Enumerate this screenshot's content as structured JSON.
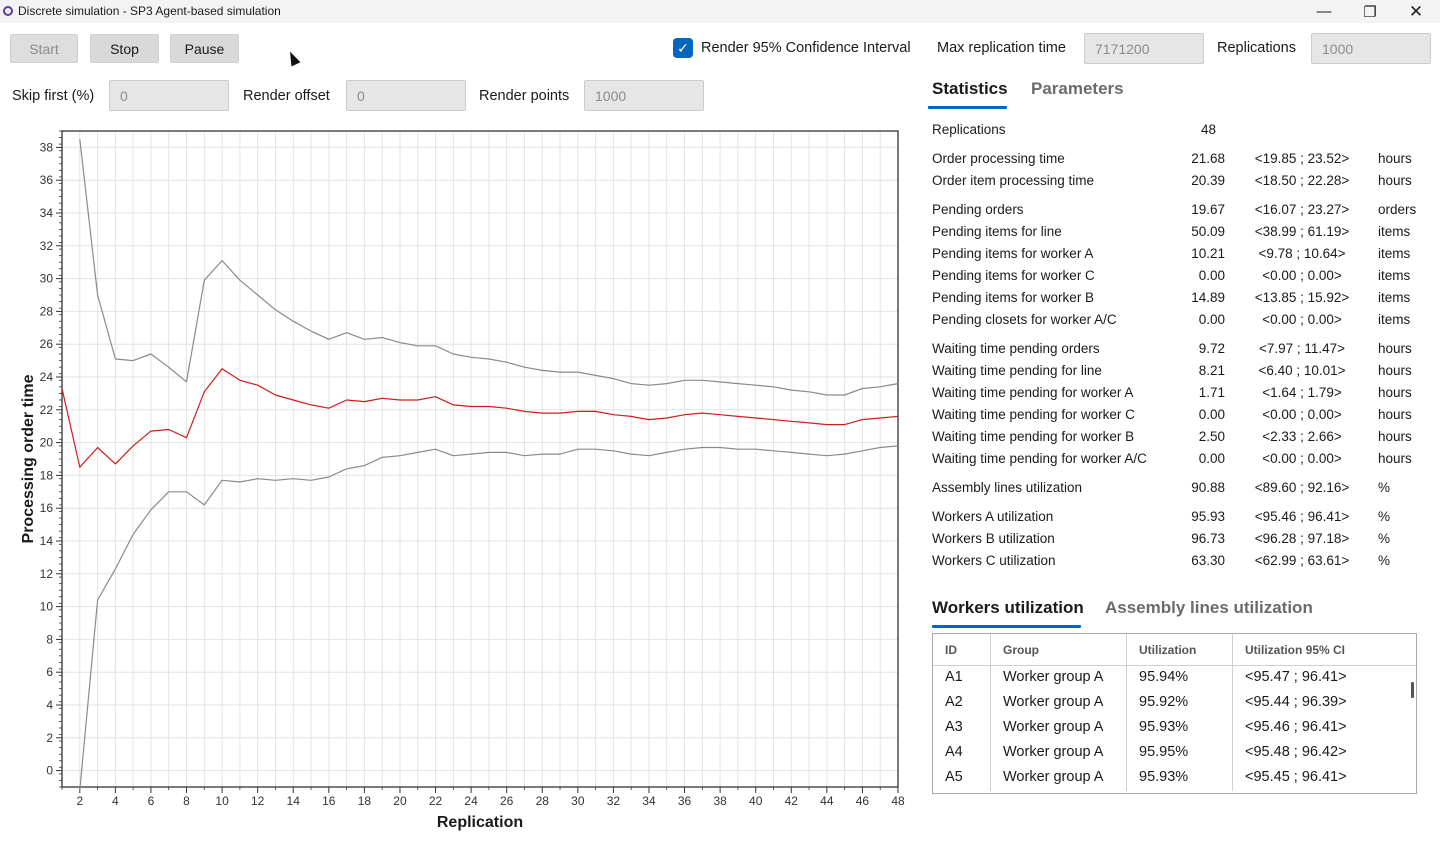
{
  "window": {
    "title": "Discrete simulation - SP3 Agent-based simulation",
    "min_icon": "minimize-icon",
    "max_icon": "maximize-icon",
    "close_icon": "close-icon"
  },
  "toolbar": {
    "start_label": "Start",
    "stop_label": "Stop",
    "pause_label": "Pause",
    "render_ci_label": "Render 95% Confidence Interval",
    "render_ci_checked": true,
    "max_rep_time_label": "Max replication time",
    "max_rep_time_value": "7171200",
    "replications_label": "Replications",
    "replications_value": "1000"
  },
  "render_opts": {
    "skip_first_label": "Skip first (%)",
    "skip_first_value": "0",
    "render_offset_label": "Render offset",
    "render_offset_value": "0",
    "render_points_label": "Render points",
    "render_points_value": "1000"
  },
  "chart_data": {
    "type": "line",
    "xlabel": "Replication",
    "ylabel": "Processing order time",
    "xlim": [
      1,
      48
    ],
    "ylim": [
      -1,
      39
    ],
    "xticks": [
      2,
      4,
      6,
      8,
      10,
      12,
      14,
      16,
      18,
      20,
      22,
      24,
      26,
      28,
      30,
      32,
      34,
      36,
      38,
      40,
      42,
      44,
      46,
      48
    ],
    "yticks": [
      0,
      2,
      4,
      6,
      8,
      10,
      12,
      14,
      16,
      18,
      20,
      22,
      24,
      26,
      28,
      30,
      32,
      34,
      36,
      38
    ],
    "grid": true,
    "series": [
      {
        "role": "upper-ci",
        "color": "#8a8a8a",
        "x": [
          2,
          3,
          4,
          5,
          6,
          7,
          8,
          9,
          10,
          11,
          12,
          13,
          14,
          15,
          16,
          17,
          18,
          19,
          20,
          21,
          22,
          23,
          24,
          25,
          26,
          27,
          28,
          29,
          30,
          31,
          32,
          33,
          34,
          35,
          36,
          37,
          38,
          39,
          40,
          41,
          42,
          43,
          44,
          45,
          46,
          47,
          48
        ],
        "y": [
          38.5,
          29,
          25.1,
          25,
          25.4,
          24.6,
          23.7,
          29.9,
          31.1,
          29.9,
          29,
          28.1,
          27.4,
          26.8,
          26.3,
          26.7,
          26.3,
          26.4,
          26.1,
          25.9,
          25.9,
          25.4,
          25.2,
          25.1,
          24.9,
          24.6,
          24.4,
          24.3,
          24.3,
          24.1,
          23.9,
          23.6,
          23.5,
          23.6,
          23.8,
          23.8,
          23.7,
          23.6,
          23.5,
          23.4,
          23.2,
          23.1,
          22.9,
          22.9,
          23.3,
          23.4,
          23.6
        ]
      },
      {
        "role": "mean",
        "color": "#d11c1c",
        "x": [
          1,
          2,
          3,
          4,
          5,
          6,
          7,
          8,
          9,
          10,
          11,
          12,
          13,
          14,
          15,
          16,
          17,
          18,
          19,
          20,
          21,
          22,
          23,
          24,
          25,
          26,
          27,
          28,
          29,
          30,
          31,
          32,
          33,
          34,
          35,
          36,
          37,
          38,
          39,
          40,
          41,
          42,
          43,
          44,
          45,
          46,
          47,
          48
        ],
        "y": [
          23.3,
          18.5,
          19.7,
          18.7,
          19.8,
          20.7,
          20.8,
          20.3,
          23.1,
          24.5,
          23.8,
          23.5,
          22.9,
          22.6,
          22.3,
          22.1,
          22.6,
          22.5,
          22.7,
          22.6,
          22.6,
          22.8,
          22.3,
          22.2,
          22.2,
          22.1,
          21.9,
          21.8,
          21.8,
          21.9,
          21.9,
          21.7,
          21.6,
          21.4,
          21.5,
          21.7,
          21.8,
          21.7,
          21.6,
          21.5,
          21.4,
          21.3,
          21.2,
          21.1,
          21.1,
          21.4,
          21.5,
          21.6
        ]
      },
      {
        "role": "lower-ci",
        "color": "#8a8a8a",
        "x": [
          2,
          3,
          4,
          5,
          6,
          7,
          8,
          9,
          10,
          11,
          12,
          13,
          14,
          15,
          16,
          17,
          18,
          19,
          20,
          21,
          22,
          23,
          24,
          25,
          26,
          27,
          28,
          29,
          30,
          31,
          32,
          33,
          34,
          35,
          36,
          37,
          38,
          39,
          40,
          41,
          42,
          43,
          44,
          45,
          46,
          47,
          48
        ],
        "y": [
          -1.2,
          10.4,
          12.3,
          14.4,
          15.9,
          17,
          17,
          16.2,
          17.7,
          17.6,
          17.8,
          17.7,
          17.8,
          17.7,
          17.9,
          18.4,
          18.6,
          19.1,
          19.2,
          19.4,
          19.6,
          19.2,
          19.3,
          19.4,
          19.4,
          19.2,
          19.3,
          19.3,
          19.6,
          19.6,
          19.5,
          19.3,
          19.2,
          19.4,
          19.6,
          19.7,
          19.7,
          19.6,
          19.6,
          19.5,
          19.4,
          19.3,
          19.2,
          19.3,
          19.5,
          19.7,
          19.8
        ]
      }
    ]
  },
  "stats_tabs": {
    "statistics": "Statistics",
    "parameters": "Parameters"
  },
  "stats": {
    "replications_label": "Replications",
    "replications_value": "48",
    "rows": [
      {
        "name": "Order processing time",
        "value": "21.68",
        "ci": "<19.85 ; 23.52>",
        "unit": "hours"
      },
      {
        "name": "Order item processing time",
        "value": "20.39",
        "ci": "<18.50 ; 22.28>",
        "unit": "hours"
      },
      {
        "name": "Pending orders",
        "value": "19.67",
        "ci": "<16.07 ; 23.27>",
        "unit": "orders"
      },
      {
        "name": "Pending items for line",
        "value": "50.09",
        "ci": "<38.99 ; 61.19>",
        "unit": "items"
      },
      {
        "name": "Pending items for worker A",
        "value": "10.21",
        "ci": "<9.78 ; 10.64>",
        "unit": "items"
      },
      {
        "name": "Pending items for worker C",
        "value": "0.00",
        "ci": "<0.00 ; 0.00>",
        "unit": "items"
      },
      {
        "name": "Pending items for worker B",
        "value": "14.89",
        "ci": "<13.85 ; 15.92>",
        "unit": "items"
      },
      {
        "name": "Pending closets for worker A/C",
        "value": "0.00",
        "ci": "<0.00 ; 0.00>",
        "unit": "items"
      },
      {
        "name": "Waiting time pending orders",
        "value": "9.72",
        "ci": "<7.97 ; 11.47>",
        "unit": "hours"
      },
      {
        "name": "Waiting time pending for line",
        "value": "8.21",
        "ci": "<6.40 ; 10.01>",
        "unit": "hours"
      },
      {
        "name": "Waiting time pending for worker A",
        "value": "1.71",
        "ci": "<1.64 ; 1.79>",
        "unit": "hours"
      },
      {
        "name": "Waiting time pending for worker C",
        "value": "0.00",
        "ci": "<0.00 ; 0.00>",
        "unit": "hours"
      },
      {
        "name": "Waiting time pending for worker B",
        "value": "2.50",
        "ci": "<2.33 ; 2.66>",
        "unit": "hours"
      },
      {
        "name": "Waiting time pending for worker A/C",
        "value": "0.00",
        "ci": "<0.00 ; 0.00>",
        "unit": "hours"
      },
      {
        "name": "Assembly lines utilization",
        "value": "90.88",
        "ci": "<89.60 ; 92.16>",
        "unit": "%"
      },
      {
        "name": "Workers A utilization",
        "value": "95.93",
        "ci": "<95.46 ; 96.41>",
        "unit": "%"
      },
      {
        "name": "Workers B utilization",
        "value": "96.73",
        "ci": "<96.28 ; 97.18>",
        "unit": "%"
      },
      {
        "name": "Workers C utilization",
        "value": "63.30",
        "ci": "<62.99 ; 63.61>",
        "unit": "%"
      }
    ]
  },
  "util_tabs": {
    "workers": "Workers utilization",
    "lines": "Assembly lines utilization"
  },
  "util_table": {
    "headers": [
      "ID",
      "Group",
      "Utilization",
      "Utilization 95% CI"
    ],
    "rows": [
      [
        "A1",
        "Worker group A",
        "95.94%",
        "<95.47 ; 96.41>"
      ],
      [
        "A2",
        "Worker group A",
        "95.92%",
        "<95.44 ; 96.39>"
      ],
      [
        "A3",
        "Worker group A",
        "95.93%",
        "<95.46 ; 96.41>"
      ],
      [
        "A4",
        "Worker group A",
        "95.95%",
        "<95.48 ; 96.42>"
      ],
      [
        "A5",
        "Worker group A",
        "95.93%",
        "<95.45 ; 96.41>"
      ]
    ]
  }
}
